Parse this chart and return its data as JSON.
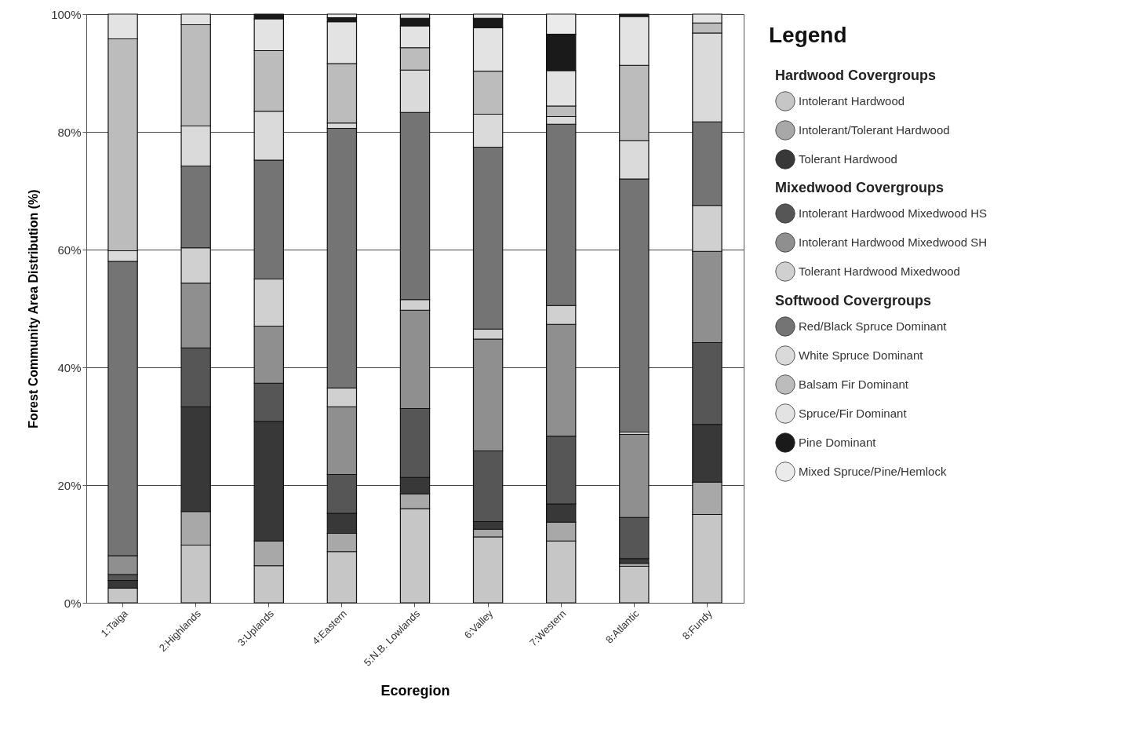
{
  "chart_data": {
    "type": "bar",
    "stacked": true,
    "xlabel": "Ecoregion",
    "ylabel": "Forest Community Area Distribution (%)",
    "legend_title": "Legend",
    "legend": "right",
    "grid": "y",
    "annotations": [
      "Hardwood Covergroups",
      "Mixedwood Covergroups",
      "Softwood Covergroups"
    ],
    "categories": [
      "1:Taiga",
      "2:Highlands",
      "3:Uplands",
      "4:Eastern",
      "5:N.B. Lowlands",
      "6:Valley",
      "7:Western",
      "8:Atlantic",
      "8:Fundy"
    ],
    "ylim": [
      0,
      100
    ],
    "yticks": [
      {
        "value": 0,
        "label": "0%"
      },
      {
        "value": 20,
        "label": "20%"
      },
      {
        "value": 40,
        "label": "40%"
      },
      {
        "value": 60,
        "label": "60%"
      },
      {
        "value": 80,
        "label": "80%"
      },
      {
        "value": 100,
        "label": "100%"
      }
    ],
    "series": [
      {
        "name": "Intolerant Hardwood",
        "color": "#c6c6c6",
        "values": [
          2.5,
          9.8,
          6.3,
          8.7,
          16,
          11.2,
          10.5,
          6.2,
          15
        ]
      },
      {
        "name": "Intolerant/Tolerant Hardwood",
        "color": "#a8a8a8",
        "values": [
          null,
          5.7,
          4.2,
          3.1,
          2.5,
          1.3,
          3.2,
          0.5,
          5.5
        ]
      },
      {
        "name": "Tolerant Hardwood",
        "color": "#383838",
        "values": [
          1.3,
          17.8,
          20.3,
          3.4,
          2.8,
          1.3,
          3.1,
          0.8,
          9.8
        ]
      },
      {
        "name": "Intolerant Hardwood Mixedwood HS",
        "color": "#565656",
        "values": [
          1,
          10,
          6.5,
          6.6,
          11.7,
          12,
          11.5,
          7,
          13.9
        ]
      },
      {
        "name": "Intolerant Hardwood Mixedwood SH",
        "color": "#8f8f8f",
        "values": [
          3.2,
          11,
          9.7,
          11.5,
          16.7,
          19,
          19,
          14.1,
          15.5
        ]
      },
      {
        "name": "Tolerant Hardwood Mixedwood",
        "color": "#d0d0d0",
        "values": [
          null,
          6,
          8,
          3.2,
          1.8,
          1.7,
          3.2,
          0.4,
          7.8
        ]
      },
      {
        "name": "Red/Black Spruce Dominant",
        "color": "#747474",
        "values": [
          50,
          13.9,
          20.2,
          44.1,
          31.8,
          30.9,
          30.8,
          43,
          14.2
        ]
      },
      {
        "name": "White Spruce Dominant",
        "color": "#dadada",
        "values": [
          1.8,
          6.8,
          8.3,
          0.9,
          7.2,
          5.6,
          1.3,
          6.5,
          15.1
        ]
      },
      {
        "name": "Balsam Fir Dominant",
        "color": "#bcbcbc",
        "values": [
          36,
          17.2,
          10.3,
          10.1,
          3.8,
          7.3,
          1.8,
          12.8,
          1.7
        ]
      },
      {
        "name": "Spruce/Fir Dominant",
        "color": "#e3e3e3",
        "values": [
          4.2,
          1.8,
          5.4,
          7.1,
          3.7,
          7.4,
          6,
          8.3,
          1.5
        ]
      },
      {
        "name": "Pine Dominant",
        "color": "#1a1a1a",
        "values": [
          null,
          null,
          0.8,
          0.7,
          1.3,
          1.6,
          6.2,
          0.4,
          null
        ]
      },
      {
        "name": "Mixed Spruce/Pine/Hemlock",
        "color": "#ebebeb",
        "values": [
          null,
          null,
          null,
          0.6,
          0.7,
          0.7,
          3.4,
          null,
          null
        ]
      }
    ]
  }
}
